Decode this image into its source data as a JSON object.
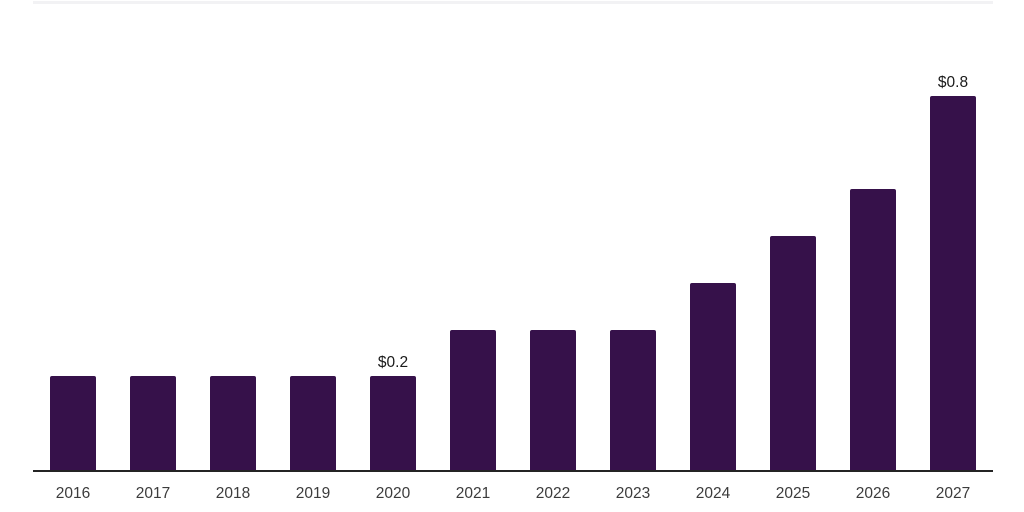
{
  "chart_data": {
    "type": "bar",
    "title": "",
    "xlabel": "",
    "ylabel": "",
    "categories": [
      "2016",
      "2017",
      "2018",
      "2019",
      "2020",
      "2021",
      "2022",
      "2023",
      "2024",
      "2025",
      "2026",
      "2027"
    ],
    "values": [
      0.2,
      0.2,
      0.2,
      0.2,
      0.2,
      0.3,
      0.3,
      0.3,
      0.4,
      0.5,
      0.6,
      0.8
    ],
    "data_labels": [
      "",
      "",
      "",
      "",
      "$0.2",
      "",
      "",
      "",
      "",
      "",
      "",
      "$0.8"
    ],
    "ylim": [
      0,
      1.0
    ],
    "grid": false,
    "legend": "none",
    "y_axis_ticks_visible": false,
    "colors": {
      "bar": "#36114a",
      "axis_line": "#242424",
      "tick_label": "#3c3c3c",
      "data_label": "#1a1a1a",
      "top_border": "#f2f2f4",
      "background": "#ffffff"
    }
  }
}
